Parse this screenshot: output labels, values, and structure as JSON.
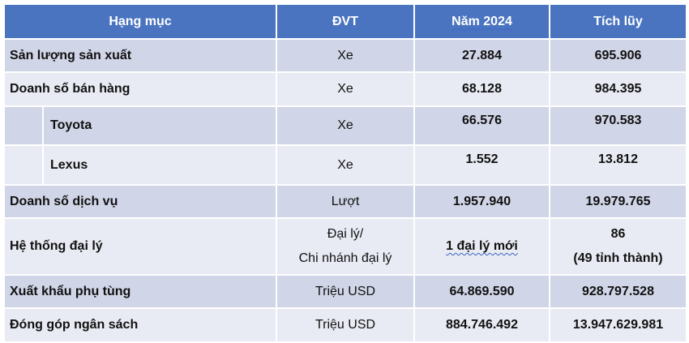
{
  "table": {
    "headers": [
      "Hạng mục",
      "ĐVT",
      "Năm 2024",
      "Tích lũy"
    ],
    "rows": [
      {
        "category": "Sản lượng sản xuất",
        "unit": "Xe",
        "year": "27.884",
        "total": "695.906"
      },
      {
        "category": "Doanh số bán hàng",
        "unit": "Xe",
        "year": "68.128",
        "total": "984.395"
      },
      {
        "category": "Toyota",
        "unit": "Xe",
        "year": "66.576",
        "total": "970.583"
      },
      {
        "category": "Lexus",
        "unit": "Xe",
        "year": "1.552",
        "total": "13.812"
      },
      {
        "category": "Doanh số dịch vụ",
        "unit": "Lượt",
        "year": "1.957.940",
        "total": "19.979.765"
      },
      {
        "category": "Hệ thống đại lý",
        "unit_line1": "Đại lý/",
        "unit_line2": "Chi nhánh đại lý",
        "year": "1 đại lý mới",
        "total_line1": "86",
        "total_line2": "(49 tỉnh thành)"
      },
      {
        "category": "Xuất khẩu phụ tùng",
        "unit": "Triệu USD",
        "year": "64.869.590",
        "total": "928.797.528"
      },
      {
        "category": "Đóng góp ngân sách",
        "unit": "Triệu USD",
        "year": "884.746.492",
        "total": "13.947.629.981"
      }
    ]
  }
}
